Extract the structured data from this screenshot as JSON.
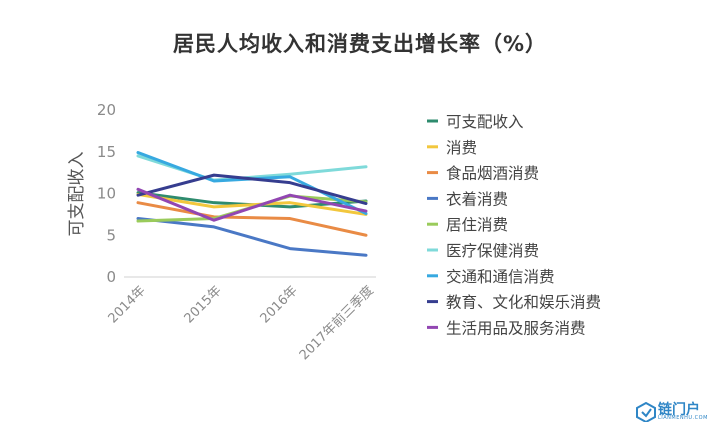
{
  "chart_data": {
    "type": "line",
    "title": "居民人均收入和消费支出增长率（%）",
    "ylabel": "可支配收入",
    "xlabel": "",
    "categories": [
      "2014年",
      "2015年",
      "2016年",
      "2017年前三季度"
    ],
    "ylim": [
      0,
      20
    ],
    "yticks": [
      0,
      5,
      10,
      15,
      20
    ],
    "grid": false,
    "legend_position": "right",
    "series": [
      {
        "name": "可支配收入",
        "color": "#2e8b6e",
        "values": [
          10.1,
          8.9,
          8.4,
          9.1
        ]
      },
      {
        "name": "消费",
        "color": "#f2c73d",
        "values": [
          9.9,
          8.4,
          8.9,
          7.5
        ]
      },
      {
        "name": "食品烟酒消费",
        "color": "#e98b45",
        "values": [
          8.9,
          7.2,
          7.0,
          5.0
        ]
      },
      {
        "name": "衣着消费",
        "color": "#4a78c5",
        "values": [
          7.0,
          6.0,
          3.4,
          2.6
        ]
      },
      {
        "name": "居住消费",
        "color": "#9acb5b",
        "values": [
          6.7,
          7.0,
          9.7,
          9.0
        ]
      },
      {
        "name": "医疗保健消费",
        "color": "#7fdada",
        "values": [
          14.5,
          11.6,
          12.3,
          13.2
        ]
      },
      {
        "name": "交通和通信消费",
        "color": "#37a9e0",
        "values": [
          14.9,
          11.5,
          12.0,
          7.6
        ]
      },
      {
        "name": "教育、文化和娱乐消费",
        "color": "#363d8f",
        "values": [
          9.8,
          12.2,
          11.3,
          8.8
        ]
      },
      {
        "name": "生活用品及服务消费",
        "color": "#9246b2",
        "values": [
          10.5,
          6.8,
          9.8,
          7.9
        ]
      }
    ]
  },
  "logo": {
    "text": "链门户",
    "sub": "LIANMENHU.COM"
  }
}
